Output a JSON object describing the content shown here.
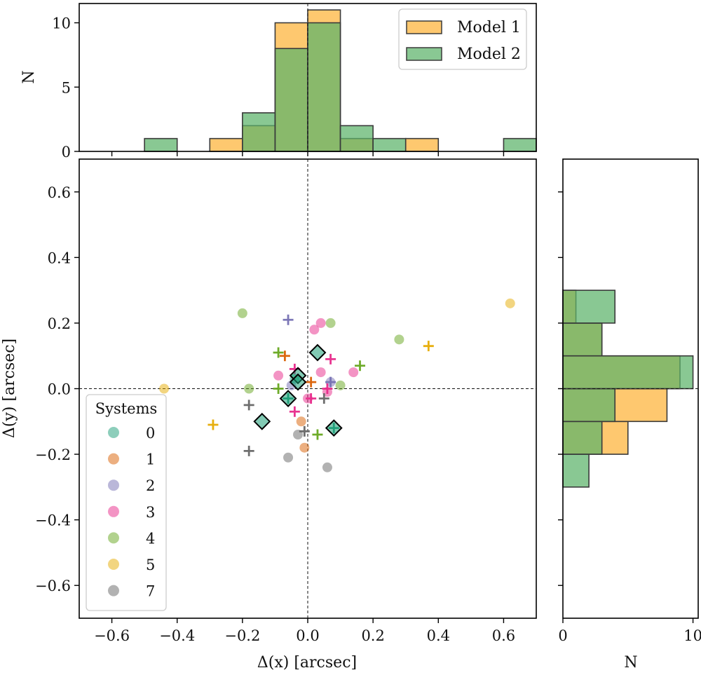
{
  "chart_data": [
    {
      "id": "scatter",
      "type": "scatter",
      "xlabel": "Δ(x) [arcsec]",
      "ylabel": "Δ(y) [arcsec]",
      "xlim": [
        -0.7,
        0.7
      ],
      "ylim": [
        -0.7,
        0.7
      ],
      "xticks": [
        -0.6,
        -0.4,
        -0.2,
        0.0,
        0.2,
        0.4,
        0.6
      ],
      "xtick_labels": [
        "−0.6",
        "−0.4",
        "−0.2",
        "0.0",
        "0.2",
        "0.4",
        "0.6"
      ],
      "yticks": [
        -0.6,
        -0.4,
        -0.2,
        0.0,
        0.2,
        0.4,
        0.6
      ],
      "ytick_labels": [
        "−0.6",
        "−0.4",
        "−0.2",
        "0.0",
        "0.2",
        "0.4",
        "0.6"
      ],
      "reference_lines": {
        "x": 0.0,
        "y": 0.0,
        "style": "dashed"
      },
      "legend": {
        "title": "Systems",
        "placement": "lower-left",
        "entries": [
          {
            "label": "0",
            "color": "#1b9e77"
          },
          {
            "label": "1",
            "color": "#d95f02"
          },
          {
            "label": "2",
            "color": "#7570b3"
          },
          {
            "label": "3",
            "color": "#e7298a"
          },
          {
            "label": "4",
            "color": "#66a61e"
          },
          {
            "label": "5",
            "color": "#e6ab02"
          },
          {
            "label": "7",
            "color": "#666666"
          }
        ]
      },
      "series": [
        {
          "name": "Model 1 (circles)",
          "marker": "circle",
          "points": [
            {
              "sys": "4",
              "x": -0.2,
              "y": 0.23
            },
            {
              "sys": "4",
              "x": -0.18,
              "y": 0.0
            },
            {
              "sys": "4",
              "x": 0.07,
              "y": 0.2
            },
            {
              "sys": "4",
              "x": 0.28,
              "y": 0.15
            },
            {
              "sys": "4",
              "x": 0.1,
              "y": 0.01
            },
            {
              "sys": "3",
              "x": 0.02,
              "y": 0.18
            },
            {
              "sys": "3",
              "x": 0.04,
              "y": 0.2
            },
            {
              "sys": "3",
              "x": -0.09,
              "y": 0.04
            },
            {
              "sys": "3",
              "x": 0.04,
              "y": 0.05
            },
            {
              "sys": "3",
              "x": 0.14,
              "y": 0.05
            },
            {
              "sys": "3",
              "x": 0.0,
              "y": -0.03
            },
            {
              "sys": "3",
              "x": 0.06,
              "y": -0.01
            },
            {
              "sys": "5",
              "x": -0.44,
              "y": 0.0
            },
            {
              "sys": "5",
              "x": 0.62,
              "y": 0.26
            },
            {
              "sys": "1",
              "x": -0.02,
              "y": -0.1
            },
            {
              "sys": "1",
              "x": -0.01,
              "y": -0.18
            },
            {
              "sys": "2",
              "x": -0.05,
              "y": 0.01
            },
            {
              "sys": "2",
              "x": 0.07,
              "y": 0.02
            },
            {
              "sys": "7",
              "x": -0.03,
              "y": -0.14
            },
            {
              "sys": "7",
              "x": -0.06,
              "y": -0.21
            },
            {
              "sys": "7",
              "x": 0.06,
              "y": -0.24
            },
            {
              "sys": "0",
              "x": -0.04,
              "y": 0.03
            }
          ]
        },
        {
          "name": "Model 2 (crosses)",
          "marker": "plus",
          "points": [
            {
              "sys": "2",
              "x": -0.06,
              "y": 0.21
            },
            {
              "sys": "4",
              "x": -0.09,
              "y": 0.11
            },
            {
              "sys": "1",
              "x": -0.07,
              "y": 0.1
            },
            {
              "sys": "3",
              "x": 0.07,
              "y": 0.09
            },
            {
              "sys": "4",
              "x": 0.16,
              "y": 0.07
            },
            {
              "sys": "5",
              "x": 0.37,
              "y": 0.13
            },
            {
              "sys": "5",
              "x": -0.29,
              "y": -0.11
            },
            {
              "sys": "3",
              "x": -0.04,
              "y": 0.06
            },
            {
              "sys": "1",
              "x": 0.01,
              "y": 0.02
            },
            {
              "sys": "4",
              "x": -0.09,
              "y": 0.0
            },
            {
              "sys": "3",
              "x": 0.06,
              "y": 0.0
            },
            {
              "sys": "3",
              "x": 0.01,
              "y": -0.03
            },
            {
              "sys": "7",
              "x": 0.05,
              "y": -0.03
            },
            {
              "sys": "7",
              "x": -0.18,
              "y": -0.05
            },
            {
              "sys": "3",
              "x": -0.04,
              "y": -0.07
            },
            {
              "sys": "4",
              "x": 0.03,
              "y": -0.14
            },
            {
              "sys": "7",
              "x": -0.01,
              "y": -0.13
            },
            {
              "sys": "7",
              "x": -0.18,
              "y": -0.19
            },
            {
              "sys": "2",
              "x": 0.07,
              "y": 0.02
            },
            {
              "sys": "0",
              "x": 0.08,
              "y": -0.12
            },
            {
              "sys": "0",
              "x": -0.06,
              "y": -0.03
            }
          ]
        },
        {
          "name": "System 0 (diamonds)",
          "marker": "diamond",
          "points": [
            {
              "sys": "0",
              "x": 0.03,
              "y": 0.11
            },
            {
              "sys": "0",
              "x": -0.03,
              "y": 0.04
            },
            {
              "sys": "0",
              "x": -0.03,
              "y": 0.02
            },
            {
              "sys": "0",
              "x": -0.06,
              "y": -0.03
            },
            {
              "sys": "0",
              "x": -0.14,
              "y": -0.1
            },
            {
              "sys": "0",
              "x": 0.08,
              "y": -0.12
            }
          ]
        }
      ]
    },
    {
      "id": "top-histogram",
      "type": "bar",
      "orientation": "vertical",
      "ylabel": "N",
      "xlim": [
        -0.7,
        0.7
      ],
      "ylim": [
        0,
        11.5
      ],
      "yticks": [
        0,
        5,
        10
      ],
      "ytick_labels": [
        "0",
        "5",
        "10"
      ],
      "bin_edges": [
        -0.6,
        -0.5,
        -0.4,
        -0.3,
        -0.2,
        -0.1,
        0.0,
        0.1,
        0.2,
        0.3,
        0.4,
        0.5,
        0.6,
        0.7
      ],
      "legend": {
        "placement": "top-right"
      },
      "series": [
        {
          "name": "Model 1",
          "color": "#fdb338",
          "values": [
            0,
            0,
            0,
            1,
            2,
            10,
            11,
            1,
            0,
            1,
            0,
            0,
            0
          ]
        },
        {
          "name": "Model 2",
          "color": "#5cb36a",
          "values": [
            0,
            1,
            0,
            0,
            3,
            8,
            10,
            2,
            1,
            0,
            0,
            0,
            1
          ]
        }
      ]
    },
    {
      "id": "right-histogram",
      "type": "bar",
      "orientation": "horizontal",
      "xlabel": "N",
      "ylim": [
        -0.7,
        0.7
      ],
      "xlim": [
        0,
        10.4
      ],
      "xticks": [
        0,
        10
      ],
      "xtick_labels": [
        "0",
        "10"
      ],
      "bin_edges": [
        -0.3,
        -0.2,
        -0.1,
        0.0,
        0.1,
        0.2,
        0.3
      ],
      "series": [
        {
          "name": "Model 1",
          "color": "#fdb338",
          "values": [
            0,
            5,
            8,
            9,
            3,
            1
          ]
        },
        {
          "name": "Model 2",
          "color": "#5cb36a",
          "values": [
            2,
            3,
            4,
            10,
            3,
            4
          ]
        }
      ]
    }
  ]
}
